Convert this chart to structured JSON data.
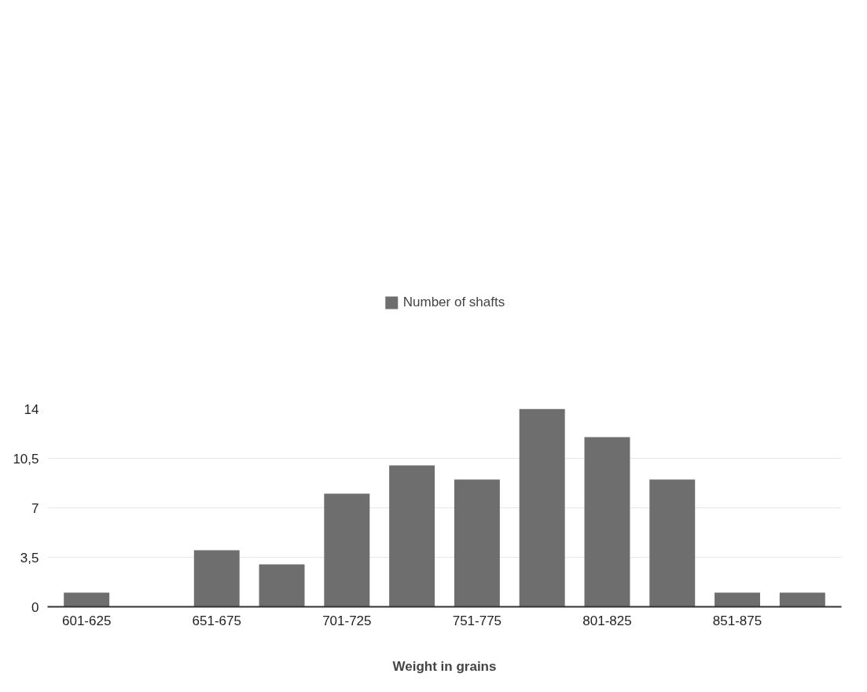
{
  "chart_data": {
    "type": "bar",
    "xlabel": "Weight in grains",
    "categories": [
      "601-625",
      null,
      "651-675",
      null,
      "701-725",
      null,
      "751-775",
      null,
      "801-825",
      null,
      "851-875",
      null
    ],
    "series": [
      {
        "name": "Number of shafts",
        "color": "#6e6e6e",
        "values": [
          1,
          0,
          4,
          3,
          8,
          10,
          9,
          14,
          12,
          9,
          1,
          1
        ]
      }
    ],
    "ylim": [
      0,
      14
    ],
    "yticks": [
      0,
      {
        "value": 3.5,
        "label": "3,5"
      },
      7,
      {
        "value": 10.5,
        "label": "10,5"
      },
      14
    ],
    "grid": "y",
    "legend": "top"
  }
}
